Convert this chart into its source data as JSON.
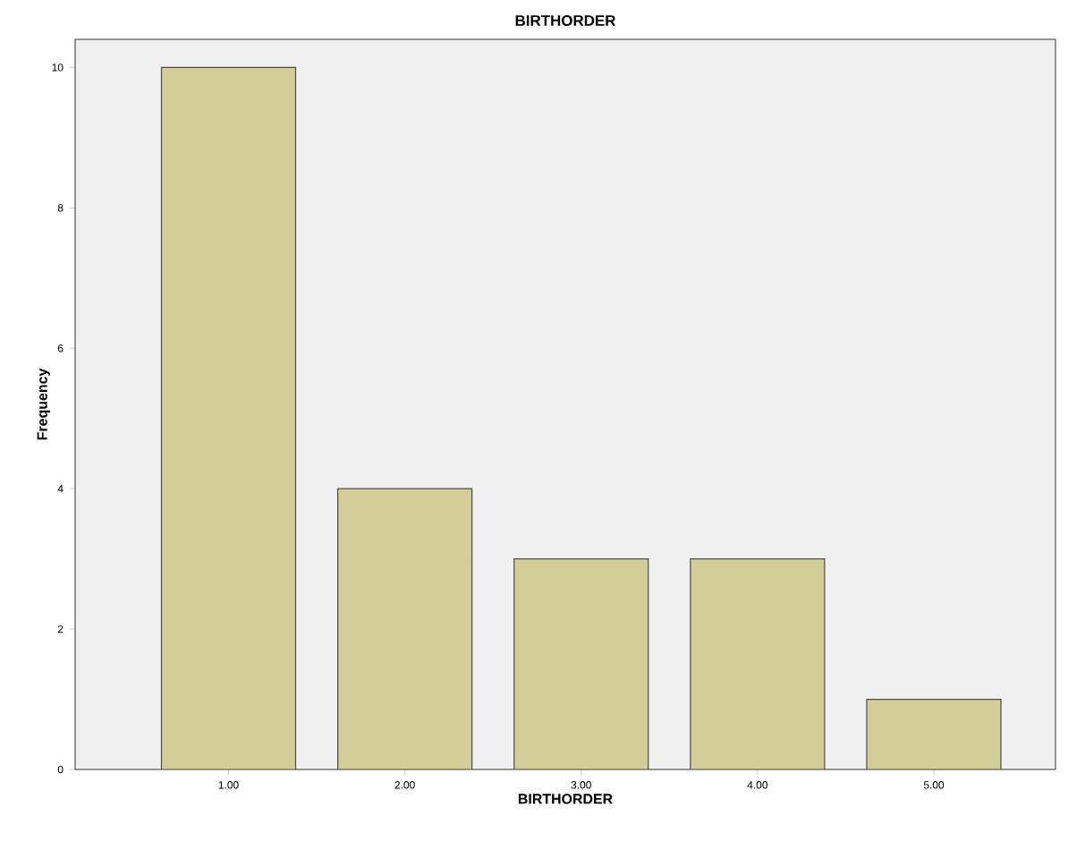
{
  "chart_data": {
    "type": "bar",
    "title": "BIRTHORDER",
    "xlabel": "BIRTHORDER",
    "ylabel": "Frequency",
    "categories": [
      "1.00",
      "2.00",
      "3.00",
      "4.00",
      "5.00"
    ],
    "values": [
      10,
      4,
      3,
      3,
      1
    ],
    "color": "#d3ce97",
    "ylim": [
      0,
      10.4
    ],
    "yticks": [
      0,
      2,
      4,
      6,
      8,
      10
    ],
    "grid": false
  }
}
